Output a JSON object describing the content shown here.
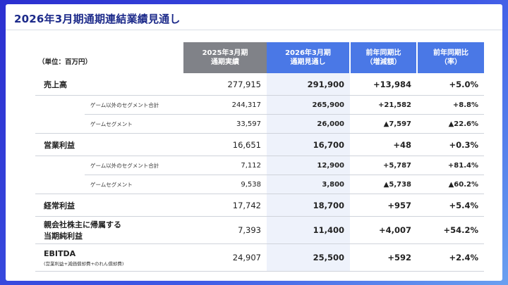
{
  "title": "2026年3月期通期連結業績見通し",
  "unit_label": "（単位：百万円）",
  "headers": [
    [
      "2025年3月期",
      "通期実績"
    ],
    [
      "2026年3月期",
      "通期見通し"
    ],
    [
      "前年同期比",
      "（増減額）"
    ],
    [
      "前年同期比",
      "（率）"
    ]
  ],
  "rows": [
    {
      "label": "売上高",
      "actual": "277,915",
      "forecast": "291,900",
      "change": "+13,984",
      "rate": "+5.0%"
    },
    {
      "label": "ゲーム以外のセグメント合計",
      "actual": "244,317",
      "forecast": "265,900",
      "change": "+21,582",
      "rate": "+8.8%"
    },
    {
      "label": "ゲームセグメント",
      "actual": "33,597",
      "forecast": "26,000",
      "change": "▲7,597",
      "rate": "▲22.6%"
    },
    {
      "label": "営業利益",
      "actual": "16,651",
      "forecast": "16,700",
      "change": "+48",
      "rate": "+0.3%"
    },
    {
      "label": "ゲーム以外のセグメント合計",
      "actual": "7,112",
      "forecast": "12,900",
      "change": "+5,787",
      "rate": "+81.4%"
    },
    {
      "label": "ゲームセグメント",
      "actual": "9,538",
      "forecast": "3,800",
      "change": "▲5,738",
      "rate": "▲60.2%"
    },
    {
      "label": "経常利益",
      "actual": "17,742",
      "forecast": "18,700",
      "change": "+957",
      "rate": "+5.4%"
    },
    {
      "label": "親会社株主に帰属する",
      "label_line2": "当期純利益",
      "actual": "7,393",
      "forecast": "11,400",
      "change": "+4,007",
      "rate": "+54.2%"
    },
    {
      "label": "EBITDA",
      "label_note": "(営業利益+減価償却費+のれん償却費)",
      "actual": "24,907",
      "forecast": "25,500",
      "change": "+592",
      "rate": "+2.4%"
    }
  ]
}
